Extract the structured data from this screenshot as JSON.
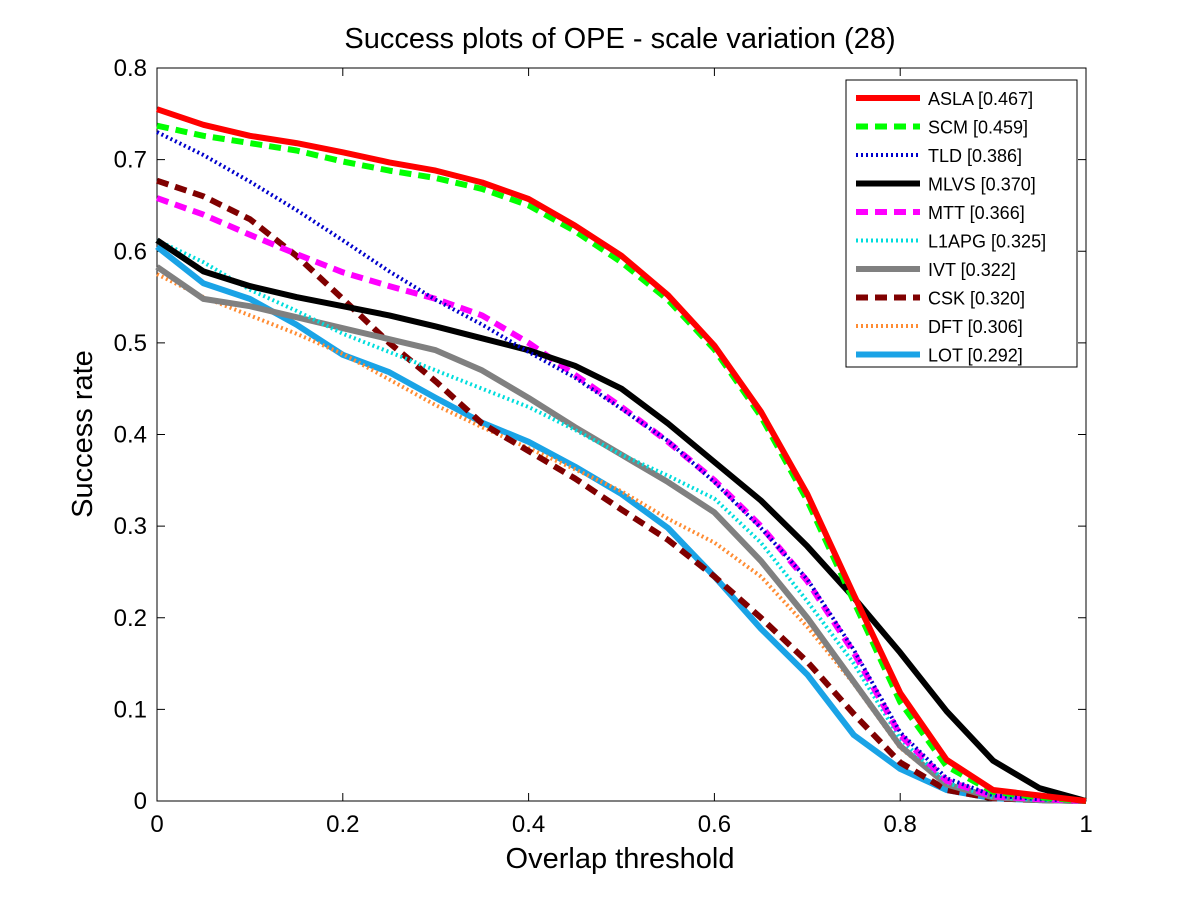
{
  "chart_data": {
    "type": "line",
    "title": "Success plots of OPE - scale variation (28)",
    "xlabel": "Overlap threshold",
    "ylabel": "Success rate",
    "xlim": [
      0,
      1
    ],
    "ylim": [
      0,
      0.8
    ],
    "xticks": [
      "0",
      "0.2",
      "0.4",
      "0.6",
      "0.8",
      "1"
    ],
    "yticks": [
      "0",
      "0.1",
      "0.2",
      "0.3",
      "0.4",
      "0.5",
      "0.6",
      "0.7",
      "0.8"
    ],
    "grid": false,
    "legend_position": "top-right",
    "x": [
      0,
      0.05,
      0.1,
      0.15,
      0.2,
      0.25,
      0.3,
      0.35,
      0.4,
      0.45,
      0.5,
      0.55,
      0.6,
      0.65,
      0.7,
      0.75,
      0.8,
      0.85,
      0.9,
      0.95,
      1.0
    ],
    "series": [
      {
        "name": "ASLA [0.467]",
        "color": "#ff0000",
        "style": "solid",
        "values": [
          0.755,
          0.738,
          0.726,
          0.718,
          0.708,
          0.697,
          0.688,
          0.675,
          0.657,
          0.628,
          0.595,
          0.552,
          0.497,
          0.425,
          0.335,
          0.225,
          0.118,
          0.045,
          0.012,
          0.006,
          0.0
        ]
      },
      {
        "name": "SCM [0.459]",
        "color": "#00ff00",
        "style": "dashed",
        "values": [
          0.737,
          0.726,
          0.718,
          0.71,
          0.698,
          0.688,
          0.68,
          0.668,
          0.65,
          0.622,
          0.588,
          0.547,
          0.493,
          0.42,
          0.328,
          0.218,
          0.108,
          0.038,
          0.01,
          0.004,
          0.0
        ]
      },
      {
        "name": "TLD [0.386]",
        "color": "#0000cc",
        "style": "dotted",
        "values": [
          0.73,
          0.705,
          0.676,
          0.645,
          0.612,
          0.578,
          0.547,
          0.52,
          0.49,
          0.462,
          0.428,
          0.393,
          0.348,
          0.298,
          0.242,
          0.165,
          0.075,
          0.025,
          0.006,
          0.002,
          0.0
        ]
      },
      {
        "name": "MLVS [0.370]",
        "color": "#000000",
        "style": "solid",
        "values": [
          0.612,
          0.578,
          0.562,
          0.55,
          0.54,
          0.53,
          0.518,
          0.505,
          0.492,
          0.475,
          0.45,
          0.412,
          0.37,
          0.328,
          0.278,
          0.222,
          0.162,
          0.098,
          0.044,
          0.014,
          0.0
        ]
      },
      {
        "name": "MTT [0.366]",
        "color": "#ff00ff",
        "style": "dashed",
        "values": [
          0.658,
          0.64,
          0.618,
          0.597,
          0.577,
          0.562,
          0.548,
          0.53,
          0.5,
          0.465,
          0.43,
          0.392,
          0.35,
          0.3,
          0.24,
          0.162,
          0.072,
          0.022,
          0.005,
          0.002,
          0.0
        ]
      },
      {
        "name": "L1APG [0.325]",
        "color": "#00dddd",
        "style": "dotted",
        "values": [
          0.612,
          0.588,
          0.558,
          0.535,
          0.51,
          0.49,
          0.47,
          0.45,
          0.43,
          0.405,
          0.378,
          0.355,
          0.33,
          0.282,
          0.218,
          0.15,
          0.068,
          0.02,
          0.004,
          0.001,
          0.0
        ]
      },
      {
        "name": "IVT [0.322]",
        "color": "#808080",
        "style": "solid",
        "values": [
          0.583,
          0.548,
          0.54,
          0.528,
          0.516,
          0.504,
          0.492,
          0.47,
          0.44,
          0.408,
          0.378,
          0.348,
          0.315,
          0.262,
          0.2,
          0.13,
          0.06,
          0.018,
          0.004,
          0.001,
          0.0
        ]
      },
      {
        "name": "CSK [0.320]",
        "color": "#800000",
        "style": "dashed",
        "values": [
          0.677,
          0.66,
          0.635,
          0.595,
          0.548,
          0.5,
          0.458,
          0.412,
          0.382,
          0.352,
          0.318,
          0.285,
          0.245,
          0.2,
          0.152,
          0.095,
          0.042,
          0.012,
          0.003,
          0.001,
          0.0
        ]
      },
      {
        "name": "DFT [0.306]",
        "color": "#ff8c33",
        "style": "dotted",
        "values": [
          0.575,
          0.55,
          0.53,
          0.51,
          0.488,
          0.46,
          0.432,
          0.408,
          0.385,
          0.362,
          0.338,
          0.308,
          0.282,
          0.245,
          0.19,
          0.128,
          0.058,
          0.018,
          0.004,
          0.001,
          0.0
        ]
      },
      {
        "name": "LOT [0.292]",
        "color": "#1aa3e6",
        "style": "solid",
        "values": [
          0.605,
          0.565,
          0.548,
          0.52,
          0.487,
          0.468,
          0.44,
          0.413,
          0.392,
          0.365,
          0.335,
          0.298,
          0.245,
          0.188,
          0.138,
          0.072,
          0.035,
          0.012,
          0.003,
          0.001,
          0.0
        ]
      }
    ]
  }
}
